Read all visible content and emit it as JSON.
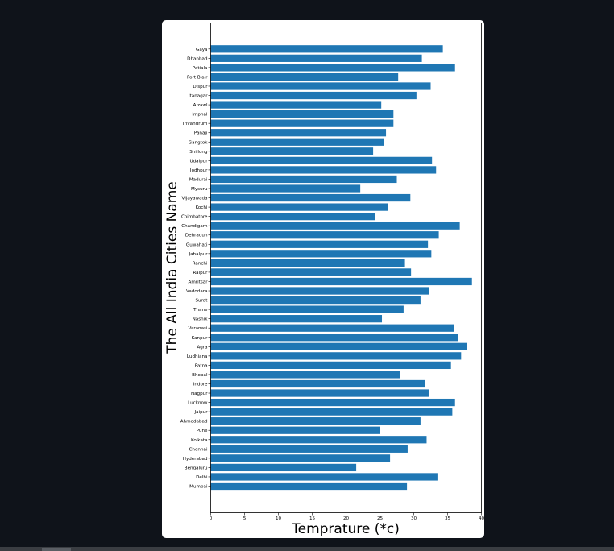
{
  "colors": {
    "background": "#0f131a",
    "card": "#ffffff",
    "bar": "#1f77b4",
    "axis": "#000000"
  },
  "chart_data": {
    "type": "bar",
    "orientation": "horizontal",
    "title": "",
    "xlabel": "Temprature (*c)",
    "ylabel": "The All India Cities Name",
    "xlim": [
      0,
      40
    ],
    "xticks": [
      "0",
      "5",
      "10",
      "15",
      "20",
      "25",
      "30",
      "35",
      "40"
    ],
    "grid": false,
    "categories": [
      "Mumbai",
      "Delhi",
      "Bengaluru",
      "Hyderabad",
      "Chennai",
      "Kolkata",
      "Pune",
      "Ahmedabad",
      "Jaipur",
      "Lucknow",
      "Nagpur",
      "Indore",
      "Bhopal",
      "Patna",
      "Ludhiana",
      "Agra",
      "Kanpur",
      "Varanasi",
      "Nashik",
      "Thane",
      "Surat",
      "Vadodara",
      "Amritsar",
      "Raipur",
      "Ranchi",
      "Jabalpur",
      "Guwahati",
      "Dehradun",
      "Chandigarh",
      "Coimbatore",
      "Kochi",
      "Vijayawada",
      "Mysuru",
      "Madurai",
      "Jodhpur",
      "Udaipur",
      "Shillong",
      "Gangtok",
      "Panaji",
      "Trivandrum",
      "Imphal",
      "Aizawl",
      "Itanagar",
      "Dispur",
      "Port Blair",
      "Patiala",
      "Dhanbad",
      "Gaya"
    ],
    "values": [
      29.0,
      33.5,
      21.5,
      26.5,
      29.1,
      31.9,
      25.0,
      31.0,
      35.7,
      36.1,
      32.2,
      31.7,
      28.0,
      35.5,
      37.0,
      37.8,
      36.6,
      36.0,
      25.3,
      28.5,
      31.0,
      32.3,
      38.6,
      29.6,
      28.7,
      32.6,
      32.1,
      33.7,
      36.8,
      24.3,
      26.2,
      29.5,
      22.1,
      27.5,
      33.3,
      32.7,
      24.0,
      25.6,
      25.9,
      27.0,
      27.0,
      25.2,
      30.4,
      32.5,
      27.7,
      36.1,
      31.2,
      34.3
    ]
  }
}
